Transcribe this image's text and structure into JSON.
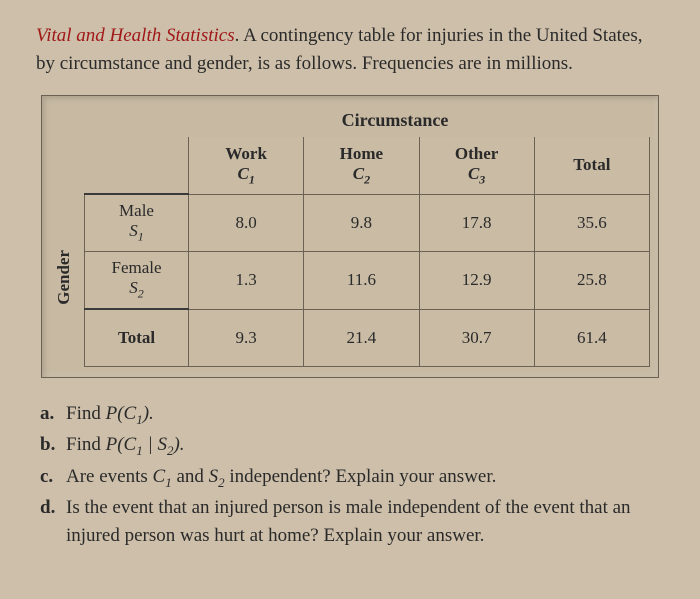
{
  "intro": {
    "title_phrase": "Vital and Health Statistics",
    "body": "A contingency table for injuries in the United States, by circumstance and gender, is as follows. Frequen­cies are in millions."
  },
  "table": {
    "super_col_label": "Circumstance",
    "row_axis_label": "Gender",
    "columns": [
      {
        "label": "Work",
        "symbol": "C",
        "sub": "1"
      },
      {
        "label": "Home",
        "symbol": "C",
        "sub": "2"
      },
      {
        "label": "Other",
        "symbol": "C",
        "sub": "3"
      }
    ],
    "total_label": "Total",
    "rows": [
      {
        "label": "Male",
        "symbol": "S",
        "sub": "1",
        "values": [
          "8.0",
          "9.8",
          "17.8"
        ],
        "total": "35.6"
      },
      {
        "label": "Female",
        "symbol": "S",
        "sub": "2",
        "values": [
          "1.3",
          "11.6",
          "12.9"
        ],
        "total": "25.8"
      }
    ],
    "col_totals": [
      "9.3",
      "21.4",
      "30.7"
    ],
    "grand_total": "61.4"
  },
  "questions": {
    "a": {
      "prefix": "Find ",
      "expr_html": "P(C<sub class='sub'>1</sub>).",
      "rest": ""
    },
    "b": {
      "prefix": "Find ",
      "expr_html": "P(C<sub class='sub'>1</sub> | S<sub class='sub'>2</sub>).",
      "rest": ""
    },
    "c": {
      "prefix": "Are events ",
      "expr_html": "C<sub class='sub'>1</sub> and S<sub class='sub'>2</sub>",
      "rest": " independent? Explain your answer."
    },
    "d": {
      "text": "Is the event that an injured person is male independent of the event that an injured person was hurt at home? Explain your answer."
    }
  },
  "styling": {
    "background_color": "#cdbfa9",
    "emph_color": "#a01818",
    "border_color": "#6b6254",
    "inner_box_color": "#3a3a3a",
    "body_fontsize": 19,
    "cell_fontsize": 17
  }
}
